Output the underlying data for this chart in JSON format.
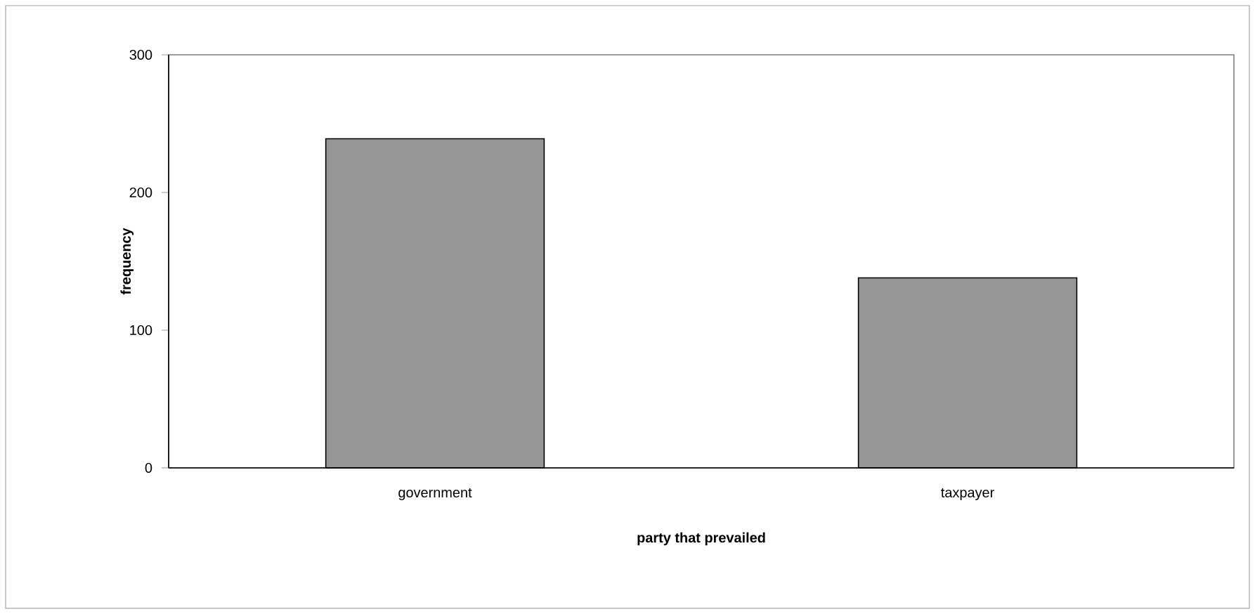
{
  "chart_data": {
    "type": "bar",
    "xlabel": "party that prevailed",
    "ylabel": "frequency",
    "categories": [
      "government",
      "taxpayer"
    ],
    "values": [
      239,
      138
    ],
    "color": "#969696",
    "ylim": [
      0,
      300
    ],
    "yticks": [
      0,
      100,
      200,
      300
    ]
  }
}
